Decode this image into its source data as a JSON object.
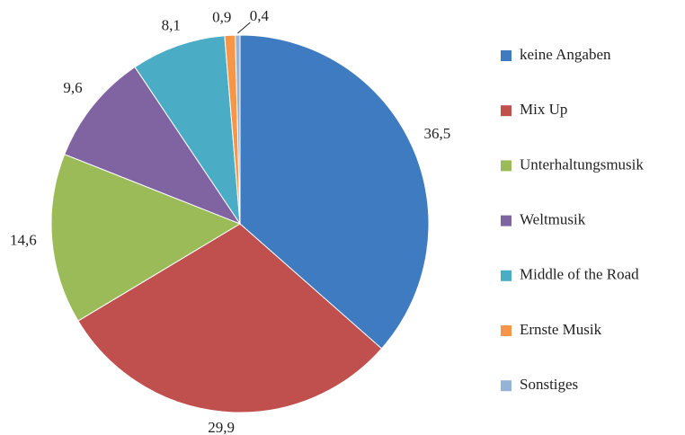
{
  "chart_data": {
    "type": "pie",
    "categories": [
      "keine Angaben",
      "Mix Up",
      "Unterhaltungsmusik",
      "Weltmusik",
      "Middle of the Road",
      "Ernste Musik",
      "Sonstiges"
    ],
    "values": [
      36.5,
      29.9,
      14.6,
      9.6,
      8.1,
      0.9,
      0.4
    ],
    "value_labels": [
      "36,5",
      "29,9",
      "14,6",
      "9,6",
      "8,1",
      "0,9",
      "0,4"
    ],
    "colors": [
      "#3f7bc1",
      "#c0504d",
      "#9bbb59",
      "#8064a2",
      "#4bacc6",
      "#f79646",
      "#95b3d7"
    ],
    "legend": "right"
  }
}
